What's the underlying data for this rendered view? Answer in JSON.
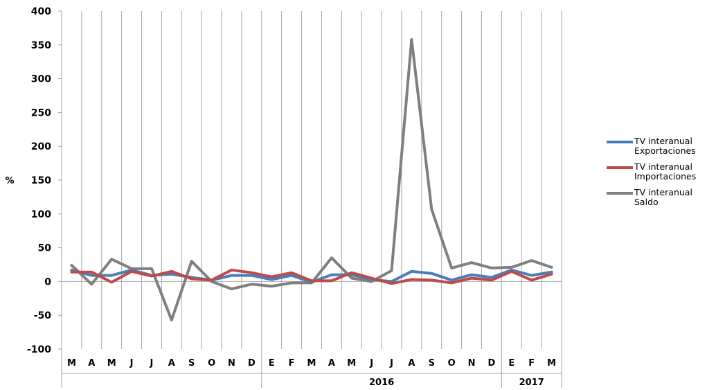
{
  "chart_data": {
    "type": "line",
    "ylabel": "%",
    "ylim": [
      -100,
      400
    ],
    "yticks": [
      "400",
      "350",
      "300",
      "250",
      "200",
      "150",
      "100",
      "50",
      "0",
      "-50",
      "-100"
    ],
    "categories": [
      "M",
      "A",
      "M",
      "J",
      "J",
      "A",
      "S",
      "O",
      "N",
      "D",
      "E",
      "F",
      "M",
      "A",
      "M",
      "J",
      "J",
      "A",
      "S",
      "O",
      "N",
      "D",
      "E",
      "F",
      "M"
    ],
    "year_labels": [
      {
        "label": "",
        "start": 0,
        "end": 9
      },
      {
        "label": "2016",
        "start": 10,
        "end": 21
      },
      {
        "label": "2017",
        "start": 22,
        "end": 24
      }
    ],
    "grid": "vertical",
    "legend_position": "right",
    "series": [
      {
        "name": "TV interanual Exportaciones",
        "color": "#4a7ebb",
        "values": [
          17,
          9,
          9,
          17,
          9,
          11,
          6,
          2,
          9,
          9,
          3,
          9,
          -1,
          10,
          10,
          3,
          0,
          15,
          12,
          2,
          10,
          6,
          17,
          9,
          14
        ]
      },
      {
        "name": "TV interanual Importaciones",
        "color": "#be4b48",
        "values": [
          14,
          14,
          -1,
          15,
          8,
          15,
          4,
          2,
          17,
          13,
          7,
          13,
          1,
          1,
          13,
          5,
          -3,
          3,
          2,
          -2,
          5,
          2,
          15,
          2,
          11
        ]
      },
      {
        "name": "TV interanual Saldo",
        "color": "#7f7f7f",
        "values": [
          24,
          -4,
          33,
          19,
          19,
          -57,
          30,
          0,
          -11,
          -4,
          -7,
          -2,
          -2,
          35,
          5,
          0,
          16,
          358,
          107,
          20,
          28,
          20,
          21,
          31,
          21
        ]
      }
    ]
  }
}
